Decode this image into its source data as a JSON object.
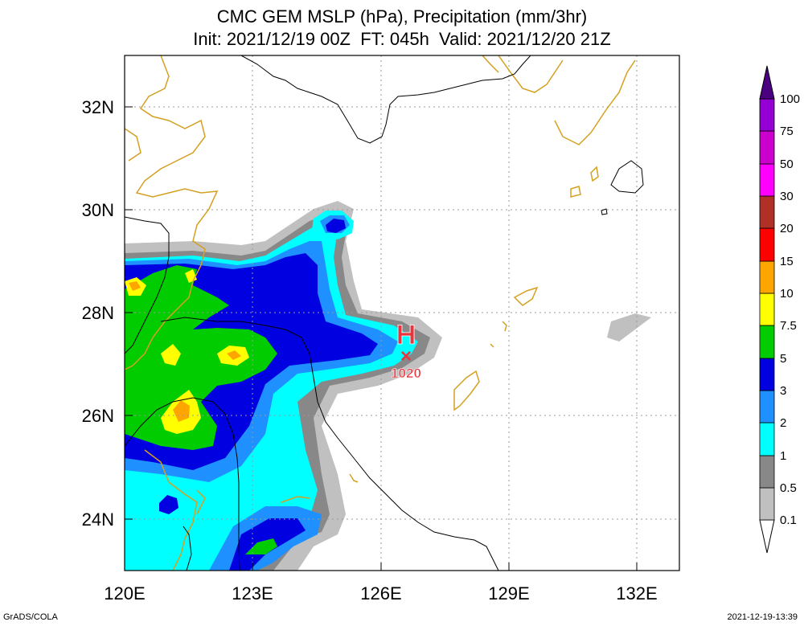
{
  "title": {
    "line1": "CMC GEM MSLP (hPa), Precipitation (mm/3hr)",
    "line2": "Init: 2021/12/19 00Z  FT: 045h  Valid: 2021/12/20 21Z"
  },
  "map": {
    "lon_range": [
      120,
      133
    ],
    "lat_range": [
      23,
      33
    ],
    "lon_ticks": [
      "120E",
      "123E",
      "126E",
      "129E",
      "132E"
    ],
    "lat_ticks": [
      "24N",
      "26N",
      "28N",
      "30N",
      "32N"
    ],
    "high_center": {
      "symbol": "H",
      "marker": "×",
      "pressure": "1020",
      "lon": 126.6,
      "lat": 27.3
    },
    "colors": {
      "coastline": "#d4a020",
      "boundary": "#000000",
      "grid": "#9a9a9a",
      "high": "#e8343c"
    }
  },
  "colorbar": {
    "levels": [
      "0.1",
      "0.5",
      "1",
      "2",
      "3",
      "5",
      "7.5",
      "10",
      "15",
      "20",
      "30",
      "50",
      "75",
      "100"
    ],
    "colors": [
      "#c0c0c0",
      "#888888",
      "#00ffff",
      "#1e90ff",
      "#0000e0",
      "#00cc00",
      "#ffff00",
      "#ffa500",
      "#ff0000",
      "#b03028",
      "#ff00ff",
      "#cc00cc",
      "#9400d3",
      "#4b0082"
    ]
  },
  "footer": {
    "left": "GrADS/COLA",
    "right": "2021-12-19-13:39"
  }
}
